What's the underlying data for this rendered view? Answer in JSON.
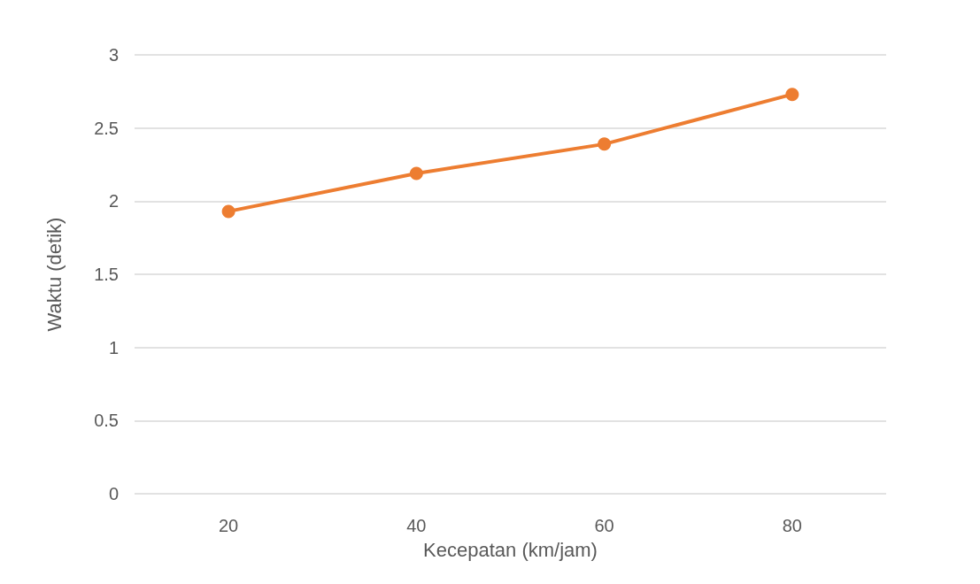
{
  "chart_data": {
    "type": "line",
    "xlabel": "Kecepatan (km/jam)",
    "ylabel": "Waktu (detik)",
    "categories": [
      "20",
      "40",
      "60",
      "80"
    ],
    "series": [
      {
        "color": "#ed7d31",
        "values": [
          1.93,
          2.19,
          2.39,
          2.73
        ]
      }
    ],
    "ylim": [
      0,
      3
    ],
    "yticks": [
      0,
      0.5,
      1,
      1.5,
      2,
      2.5,
      3
    ],
    "grid": "y",
    "marker": "circle",
    "line_style": "solid"
  }
}
